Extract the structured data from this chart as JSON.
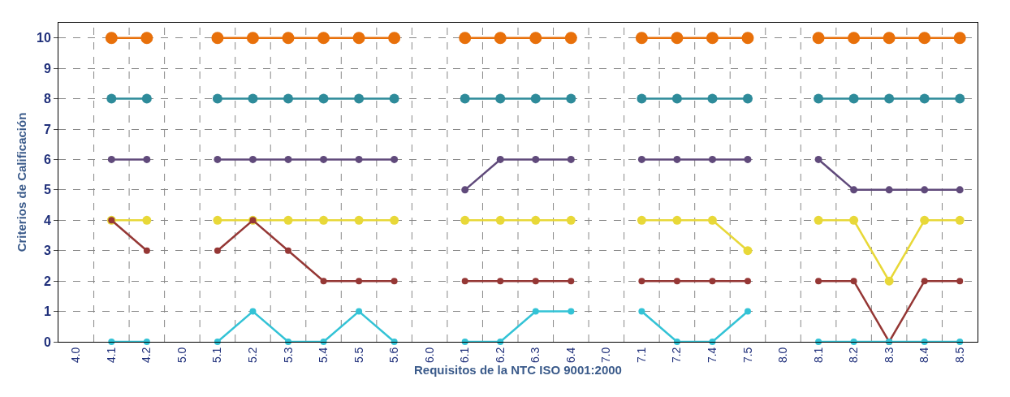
{
  "chart_data": {
    "type": "line",
    "xlabel": "Requisitos de la NTC ISO 9001:2000",
    "ylabel": "Criterios de Calificación",
    "categories": [
      "4.0",
      "4.1",
      "4.2",
      "5.0",
      "5.1",
      "5.2",
      "5.3",
      "5.4",
      "5.5",
      "5.6",
      "6.0",
      "6.1",
      "6.2",
      "6.3",
      "6.4",
      "7.0",
      "7.1",
      "7.2",
      "7.4",
      "7.5",
      "8.0",
      "8.1",
      "8.2",
      "8.3",
      "8.4",
      "8.5"
    ],
    "series": [
      {
        "color": "#e8700a",
        "values": [
          null,
          10,
          10,
          null,
          10,
          10,
          10,
          10,
          10,
          10,
          null,
          10,
          10,
          10,
          10,
          null,
          10,
          10,
          10,
          10,
          null,
          10,
          10,
          10,
          10,
          10
        ]
      },
      {
        "color": "#2e8b9a",
        "values": [
          null,
          8,
          8,
          null,
          8,
          8,
          8,
          8,
          8,
          8,
          null,
          8,
          8,
          8,
          8,
          null,
          8,
          8,
          8,
          8,
          null,
          8,
          8,
          8,
          8,
          8
        ]
      },
      {
        "color": "#604a7b",
        "values": [
          null,
          6,
          6,
          null,
          6,
          6,
          6,
          6,
          6,
          6,
          null,
          5,
          6,
          6,
          6,
          null,
          6,
          6,
          6,
          6,
          null,
          6,
          5,
          5,
          5,
          5
        ]
      },
      {
        "color": "#e8d838",
        "values": [
          null,
          4,
          4,
          null,
          4,
          4,
          4,
          4,
          4,
          4,
          null,
          4,
          4,
          4,
          4,
          null,
          4,
          4,
          4,
          3,
          null,
          4,
          4,
          2,
          4,
          4
        ]
      },
      {
        "color": "#953735",
        "values": [
          null,
          4,
          3,
          null,
          3,
          4,
          3,
          2,
          2,
          2,
          null,
          2,
          2,
          2,
          2,
          null,
          2,
          2,
          2,
          2,
          null,
          2,
          2,
          0,
          2,
          2
        ]
      },
      {
        "color": "#33c3d6",
        "values": [
          null,
          0,
          0,
          null,
          0,
          1,
          0,
          0,
          1,
          0,
          null,
          0,
          0,
          1,
          1,
          null,
          1,
          0,
          0,
          1,
          null,
          0,
          0,
          0,
          0,
          0
        ]
      }
    ],
    "ylim": [
      0,
      10.5
    ],
    "yticks": [
      0,
      1,
      2,
      3,
      4,
      5,
      6,
      7,
      8,
      9,
      10
    ],
    "grid": true,
    "marker": "circle",
    "line_style": "solid"
  }
}
